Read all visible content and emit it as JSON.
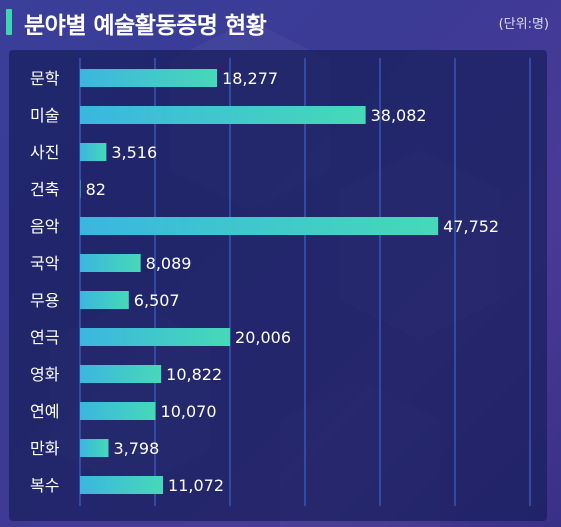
{
  "header": {
    "title": "분야별 예술활동증명 현황",
    "unit": "(단위:명)"
  },
  "colors": {
    "bar_start": "#3bb6e0",
    "bar_end": "#46d9b8",
    "accent": "#3fd4b6",
    "grid": "#3d63c9"
  },
  "chart_data": {
    "type": "bar",
    "orientation": "horizontal",
    "title": "분야별 예술활동증명 현황",
    "unit": "(단위:명)",
    "categories": [
      "문학",
      "미술",
      "사진",
      "건축",
      "음악",
      "국악",
      "무용",
      "연극",
      "영화",
      "연예",
      "만화",
      "복수"
    ],
    "values": [
      18277,
      38082,
      3516,
      82,
      47752,
      8089,
      6507,
      20006,
      10822,
      10070,
      3798,
      11072
    ],
    "value_labels": [
      "18,277",
      "38,082",
      "3,516",
      "82",
      "47,752",
      "8,089",
      "6,507",
      "20,006",
      "10,822",
      "10,070",
      "3,798",
      "11,072"
    ],
    "xlim": [
      0,
      60000
    ],
    "grid": true
  }
}
